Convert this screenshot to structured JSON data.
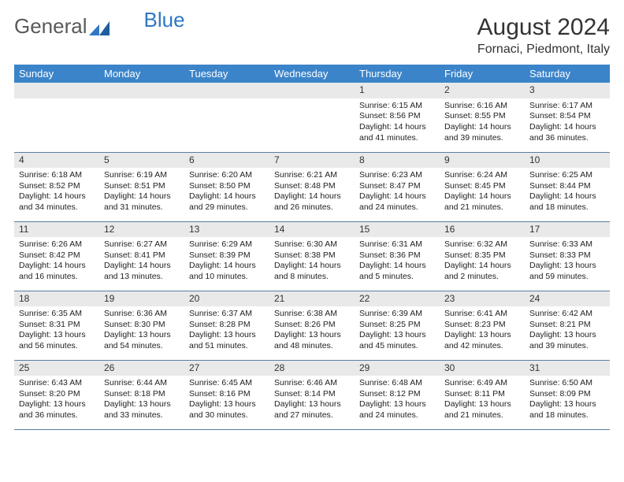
{
  "brand": {
    "first": "General",
    "second": "Blue"
  },
  "title": "August 2024",
  "location": "Fornaci, Piedmont, Italy",
  "colors": {
    "header_bg": "#3b84c9",
    "header_text": "#ffffff",
    "daynum_bg": "#e9e9e9",
    "border": "#5a7ea3",
    "logo_grey": "#595959",
    "logo_blue": "#2f78c3"
  },
  "day_headers": [
    "Sunday",
    "Monday",
    "Tuesday",
    "Wednesday",
    "Thursday",
    "Friday",
    "Saturday"
  ],
  "weeks": [
    [
      null,
      null,
      null,
      null,
      {
        "n": "1",
        "sr": "Sunrise: 6:15 AM",
        "ss": "Sunset: 8:56 PM",
        "d1": "Daylight: 14 hours",
        "d2": "and 41 minutes."
      },
      {
        "n": "2",
        "sr": "Sunrise: 6:16 AM",
        "ss": "Sunset: 8:55 PM",
        "d1": "Daylight: 14 hours",
        "d2": "and 39 minutes."
      },
      {
        "n": "3",
        "sr": "Sunrise: 6:17 AM",
        "ss": "Sunset: 8:54 PM",
        "d1": "Daylight: 14 hours",
        "d2": "and 36 minutes."
      }
    ],
    [
      {
        "n": "4",
        "sr": "Sunrise: 6:18 AM",
        "ss": "Sunset: 8:52 PM",
        "d1": "Daylight: 14 hours",
        "d2": "and 34 minutes."
      },
      {
        "n": "5",
        "sr": "Sunrise: 6:19 AM",
        "ss": "Sunset: 8:51 PM",
        "d1": "Daylight: 14 hours",
        "d2": "and 31 minutes."
      },
      {
        "n": "6",
        "sr": "Sunrise: 6:20 AM",
        "ss": "Sunset: 8:50 PM",
        "d1": "Daylight: 14 hours",
        "d2": "and 29 minutes."
      },
      {
        "n": "7",
        "sr": "Sunrise: 6:21 AM",
        "ss": "Sunset: 8:48 PM",
        "d1": "Daylight: 14 hours",
        "d2": "and 26 minutes."
      },
      {
        "n": "8",
        "sr": "Sunrise: 6:23 AM",
        "ss": "Sunset: 8:47 PM",
        "d1": "Daylight: 14 hours",
        "d2": "and 24 minutes."
      },
      {
        "n": "9",
        "sr": "Sunrise: 6:24 AM",
        "ss": "Sunset: 8:45 PM",
        "d1": "Daylight: 14 hours",
        "d2": "and 21 minutes."
      },
      {
        "n": "10",
        "sr": "Sunrise: 6:25 AM",
        "ss": "Sunset: 8:44 PM",
        "d1": "Daylight: 14 hours",
        "d2": "and 18 minutes."
      }
    ],
    [
      {
        "n": "11",
        "sr": "Sunrise: 6:26 AM",
        "ss": "Sunset: 8:42 PM",
        "d1": "Daylight: 14 hours",
        "d2": "and 16 minutes."
      },
      {
        "n": "12",
        "sr": "Sunrise: 6:27 AM",
        "ss": "Sunset: 8:41 PM",
        "d1": "Daylight: 14 hours",
        "d2": "and 13 minutes."
      },
      {
        "n": "13",
        "sr": "Sunrise: 6:29 AM",
        "ss": "Sunset: 8:39 PM",
        "d1": "Daylight: 14 hours",
        "d2": "and 10 minutes."
      },
      {
        "n": "14",
        "sr": "Sunrise: 6:30 AM",
        "ss": "Sunset: 8:38 PM",
        "d1": "Daylight: 14 hours",
        "d2": "and 8 minutes."
      },
      {
        "n": "15",
        "sr": "Sunrise: 6:31 AM",
        "ss": "Sunset: 8:36 PM",
        "d1": "Daylight: 14 hours",
        "d2": "and 5 minutes."
      },
      {
        "n": "16",
        "sr": "Sunrise: 6:32 AM",
        "ss": "Sunset: 8:35 PM",
        "d1": "Daylight: 14 hours",
        "d2": "and 2 minutes."
      },
      {
        "n": "17",
        "sr": "Sunrise: 6:33 AM",
        "ss": "Sunset: 8:33 PM",
        "d1": "Daylight: 13 hours",
        "d2": "and 59 minutes."
      }
    ],
    [
      {
        "n": "18",
        "sr": "Sunrise: 6:35 AM",
        "ss": "Sunset: 8:31 PM",
        "d1": "Daylight: 13 hours",
        "d2": "and 56 minutes."
      },
      {
        "n": "19",
        "sr": "Sunrise: 6:36 AM",
        "ss": "Sunset: 8:30 PM",
        "d1": "Daylight: 13 hours",
        "d2": "and 54 minutes."
      },
      {
        "n": "20",
        "sr": "Sunrise: 6:37 AM",
        "ss": "Sunset: 8:28 PM",
        "d1": "Daylight: 13 hours",
        "d2": "and 51 minutes."
      },
      {
        "n": "21",
        "sr": "Sunrise: 6:38 AM",
        "ss": "Sunset: 8:26 PM",
        "d1": "Daylight: 13 hours",
        "d2": "and 48 minutes."
      },
      {
        "n": "22",
        "sr": "Sunrise: 6:39 AM",
        "ss": "Sunset: 8:25 PM",
        "d1": "Daylight: 13 hours",
        "d2": "and 45 minutes."
      },
      {
        "n": "23",
        "sr": "Sunrise: 6:41 AM",
        "ss": "Sunset: 8:23 PM",
        "d1": "Daylight: 13 hours",
        "d2": "and 42 minutes."
      },
      {
        "n": "24",
        "sr": "Sunrise: 6:42 AM",
        "ss": "Sunset: 8:21 PM",
        "d1": "Daylight: 13 hours",
        "d2": "and 39 minutes."
      }
    ],
    [
      {
        "n": "25",
        "sr": "Sunrise: 6:43 AM",
        "ss": "Sunset: 8:20 PM",
        "d1": "Daylight: 13 hours",
        "d2": "and 36 minutes."
      },
      {
        "n": "26",
        "sr": "Sunrise: 6:44 AM",
        "ss": "Sunset: 8:18 PM",
        "d1": "Daylight: 13 hours",
        "d2": "and 33 minutes."
      },
      {
        "n": "27",
        "sr": "Sunrise: 6:45 AM",
        "ss": "Sunset: 8:16 PM",
        "d1": "Daylight: 13 hours",
        "d2": "and 30 minutes."
      },
      {
        "n": "28",
        "sr": "Sunrise: 6:46 AM",
        "ss": "Sunset: 8:14 PM",
        "d1": "Daylight: 13 hours",
        "d2": "and 27 minutes."
      },
      {
        "n": "29",
        "sr": "Sunrise: 6:48 AM",
        "ss": "Sunset: 8:12 PM",
        "d1": "Daylight: 13 hours",
        "d2": "and 24 minutes."
      },
      {
        "n": "30",
        "sr": "Sunrise: 6:49 AM",
        "ss": "Sunset: 8:11 PM",
        "d1": "Daylight: 13 hours",
        "d2": "and 21 minutes."
      },
      {
        "n": "31",
        "sr": "Sunrise: 6:50 AM",
        "ss": "Sunset: 8:09 PM",
        "d1": "Daylight: 13 hours",
        "d2": "and 18 minutes."
      }
    ]
  ]
}
